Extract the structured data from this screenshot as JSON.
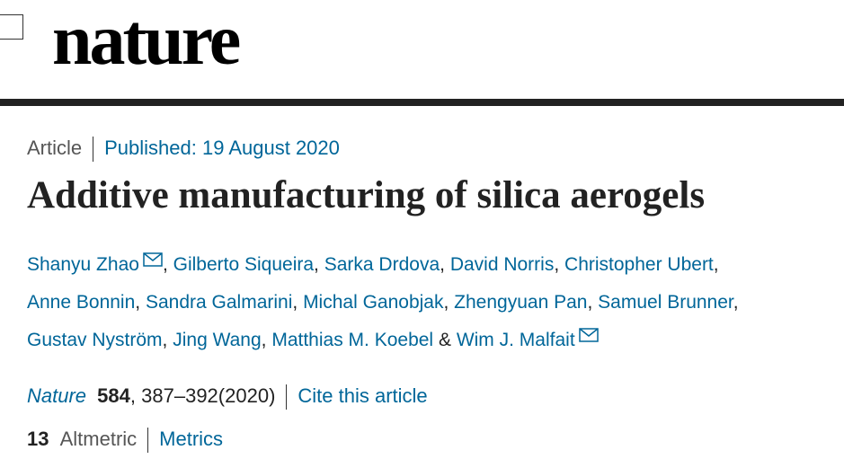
{
  "header": {
    "logo": "nature"
  },
  "article": {
    "type": "Article",
    "published": "Published: 19 August 2020",
    "title": "Additive manufacturing of silica aerogels",
    "authors": [
      "Shanyu Zhao",
      "Gilberto Siqueira",
      "Sarka Drdova",
      "David Norris",
      "Christopher Ubert",
      "Anne Bonnin",
      "Sandra Galmarini",
      "Michal Ganobjak",
      "Zhengyuan Pan",
      "Samuel Brunner",
      "Gustav Nyström",
      "Jing Wang",
      "Matthias M. Koebel",
      "Wim J. Malfait"
    ],
    "separator": ",",
    "last_separator": "&",
    "citation": {
      "journal": "Nature",
      "volume": "584",
      "pages": "387–392",
      "year": "(2020)",
      "cite_link": "Cite this article"
    },
    "metrics": {
      "altmetric_score": "13",
      "altmetric_label": "Altmetric",
      "metrics_link": "Metrics"
    }
  }
}
